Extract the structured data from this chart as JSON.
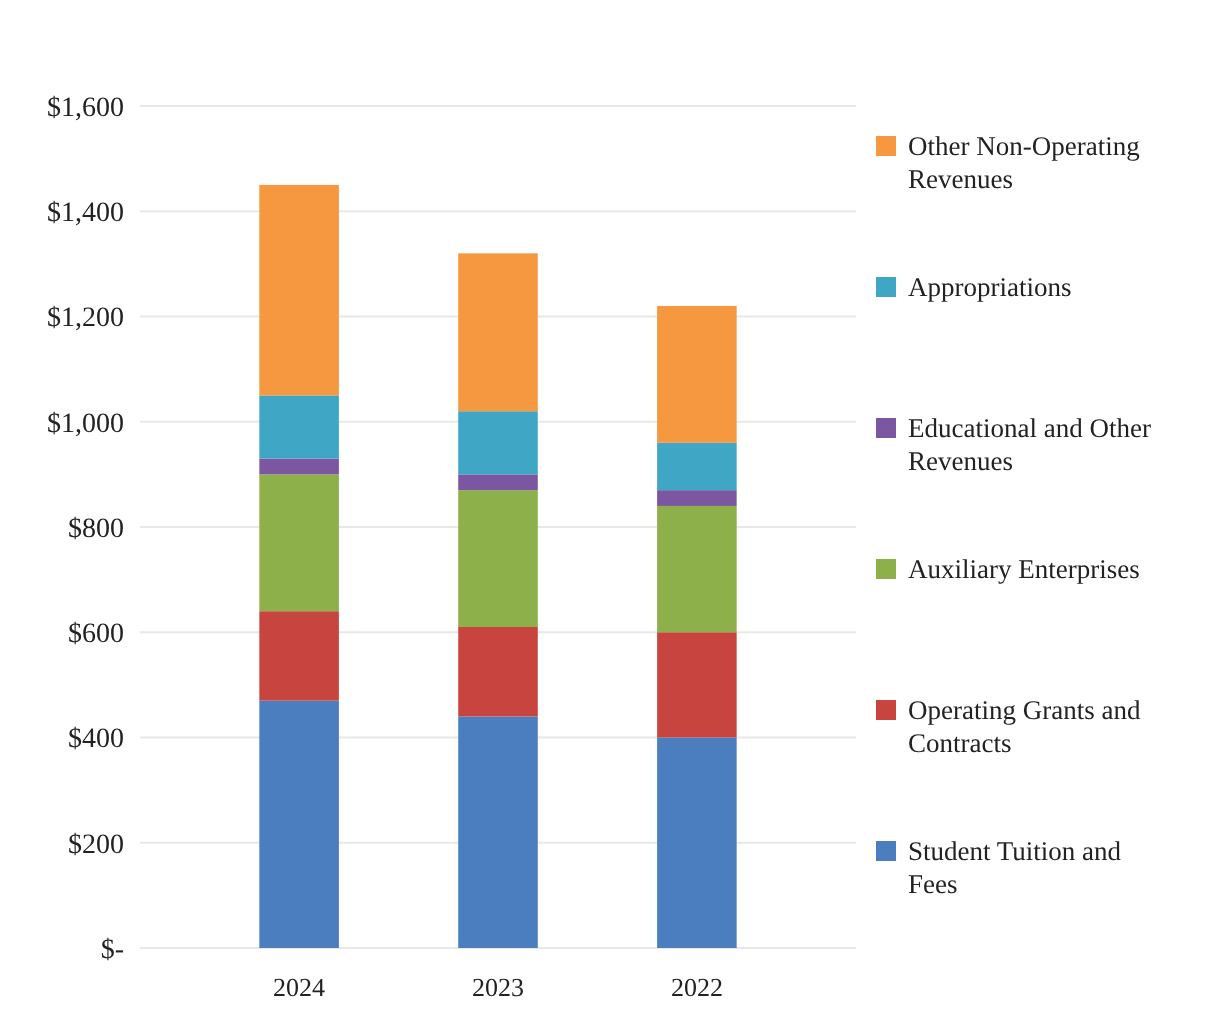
{
  "chart_data": {
    "type": "bar",
    "stacked": true,
    "categories": [
      "2024",
      "2023",
      "2022"
    ],
    "series": [
      {
        "name": "Student Tuition and Fees",
        "color": "#4a7ebf",
        "values": [
          470,
          440,
          400
        ]
      },
      {
        "name": "Operating Grants and Contracts",
        "color": "#c8453f",
        "values": [
          170,
          170,
          200
        ]
      },
      {
        "name": "Auxiliary Enterprises",
        "color": "#8db04a",
        "values": [
          260,
          260,
          240
        ]
      },
      {
        "name": "Educational and Other Revenues",
        "color": "#7a57a0",
        "values": [
          30,
          30,
          30
        ]
      },
      {
        "name": "Appropriations",
        "color": "#3fa6c6",
        "values": [
          120,
          120,
          90
        ]
      },
      {
        "name": "Other Non-Operating Revenues",
        "color": "#f59840",
        "values": [
          400,
          300,
          260
        ]
      }
    ],
    "ylim": [
      0,
      1600
    ],
    "yticks": [
      {
        "value": 0,
        "label": "$-"
      },
      {
        "value": 200,
        "label": "$200"
      },
      {
        "value": 400,
        "label": "$400"
      },
      {
        "value": 600,
        "label": "$600"
      },
      {
        "value": 800,
        "label": "$800"
      },
      {
        "value": 1000,
        "label": "$1,000"
      },
      {
        "value": 1200,
        "label": "$1,200"
      },
      {
        "value": 1400,
        "label": "$1,400"
      },
      {
        "value": 1600,
        "label": "$1,600"
      }
    ],
    "grid": "y",
    "legend": "right"
  }
}
